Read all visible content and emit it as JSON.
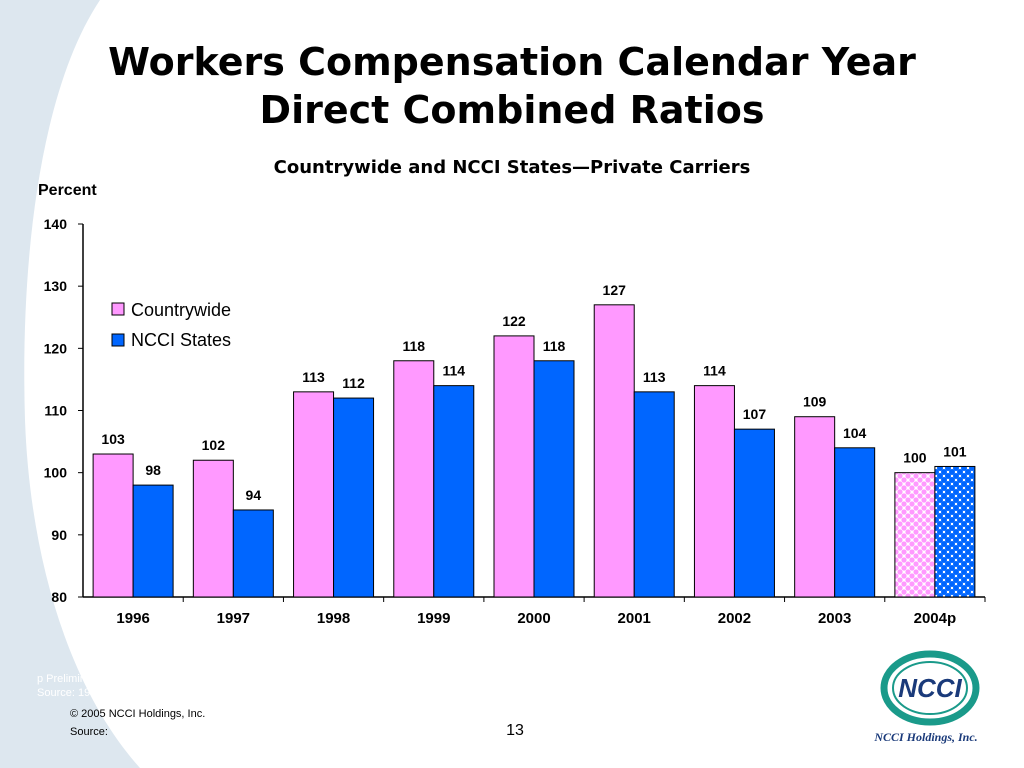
{
  "slide": {
    "title_line1": "Workers Compensation Calendar Year",
    "title_line2": "Direct Combined Ratios",
    "subtitle": "Countrywide and NCCI States—Private Carriers",
    "footnote_line1": "p Preliminary",
    "footnote_line2": "Source:   1996-2003, Best's Aggregates & Averages; 2004p, NCCI",
    "copyright": "© 2005 NCCI Holdings, Inc.",
    "source_label": "Source:",
    "page_number": "13",
    "logo_text": "NCCI",
    "company_name": "NCCI Holdings, Inc.",
    "colors": {
      "background_swoosh": "#dde7ef",
      "countrywide": "#ff99ff",
      "ncci_states": "#0066ff",
      "logo_ring": "#1a9a8a",
      "logo_text": "#1a3a7a"
    }
  },
  "chart_data": {
    "type": "bar",
    "ylabel": "Percent",
    "xlabel": "",
    "ylim": [
      80,
      140
    ],
    "yticks": [
      80,
      90,
      100,
      110,
      120,
      130,
      140
    ],
    "categories": [
      "1996",
      "1997",
      "1998",
      "1999",
      "2000",
      "2001",
      "2002",
      "2003",
      "2004p"
    ],
    "series": [
      {
        "name": "Countrywide",
        "values": [
          103,
          102,
          113,
          118,
          122,
          127,
          114,
          109,
          100
        ],
        "labels": [
          "103",
          "102",
          "113",
          "118",
          "122",
          "127",
          "114",
          "109",
          "100"
        ]
      },
      {
        "name": "NCCI States",
        "values": [
          98,
          94,
          112,
          114,
          118,
          113,
          107,
          104,
          101
        ],
        "labels": [
          "98",
          "94",
          "112",
          "114",
          "118",
          "113",
          "107",
          "104",
          "101"
        ]
      }
    ],
    "preliminary_category": "2004p",
    "legend_position": "top-left",
    "grid": false
  }
}
